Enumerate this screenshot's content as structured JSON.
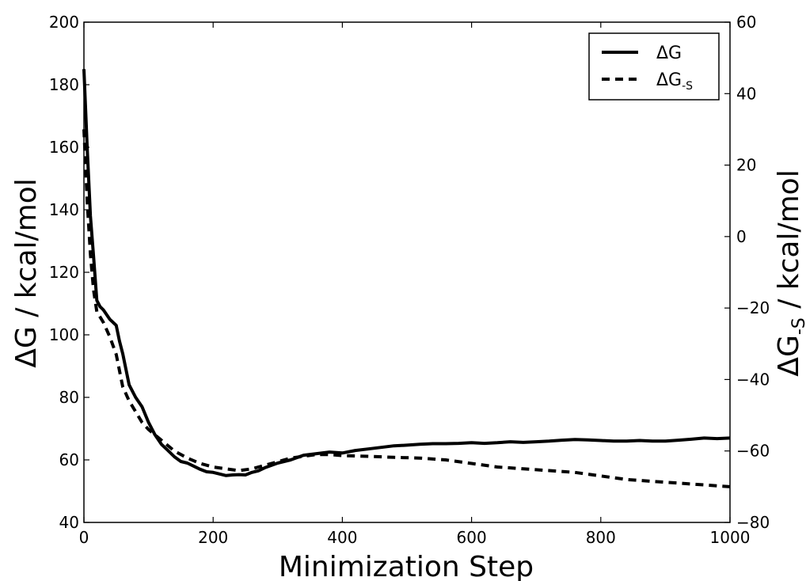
{
  "chart_data": {
    "type": "line",
    "xlabel": "Minimization Step",
    "ylabel_left": "ΔG / kcal/mol",
    "ylabel_right": {
      "base": "ΔG",
      "sub": "-S",
      "rest": " / kcal/mol"
    },
    "xlim": [
      0,
      1000
    ],
    "ylim_left": [
      40,
      200
    ],
    "ylim_right": [
      -80,
      60
    ],
    "xticks": [
      "0",
      "200",
      "400",
      "600",
      "800",
      "1000"
    ],
    "yticks_left": [
      "40",
      "60",
      "80",
      "100",
      "120",
      "140",
      "160",
      "180",
      "200"
    ],
    "yticks_right": [
      "−80",
      "−60",
      "−40",
      "−20",
      "0",
      "20",
      "40",
      "60"
    ],
    "grid": false,
    "legend_position": "top-right",
    "series": [
      {
        "name": "ΔG",
        "axis": "left",
        "style": "solid",
        "color": "#000000",
        "x": [
          0,
          5,
          10,
          15,
          20,
          25,
          30,
          40,
          50,
          55,
          60,
          70,
          80,
          90,
          100,
          110,
          120,
          130,
          140,
          150,
          160,
          170,
          180,
          190,
          200,
          210,
          220,
          230,
          240,
          250,
          260,
          270,
          280,
          300,
          320,
          340,
          360,
          380,
          400,
          420,
          440,
          460,
          480,
          500,
          520,
          540,
          560,
          580,
          600,
          620,
          640,
          660,
          680,
          700,
          720,
          740,
          760,
          780,
          800,
          820,
          840,
          860,
          880,
          900,
          920,
          940,
          960,
          980,
          1000
        ],
        "values": [
          185,
          160,
          138,
          125,
          111,
          109,
          108,
          105,
          103,
          98,
          94,
          84,
          80,
          77,
          72,
          68,
          65,
          63,
          61,
          59.5,
          59,
          58,
          57,
          56.2,
          56,
          55.5,
          55,
          55.2,
          55.3,
          55.2,
          56,
          56.5,
          57.5,
          59,
          60,
          61.5,
          62,
          62.5,
          62.2,
          63,
          63.5,
          64,
          64.5,
          64.7,
          65,
          65.2,
          65.2,
          65.3,
          65.5,
          65.3,
          65.5,
          65.8,
          65.6,
          65.8,
          66,
          66.3,
          66.5,
          66.4,
          66.2,
          66,
          66,
          66.2,
          66,
          66,
          66.3,
          66.6,
          67,
          66.8,
          67
        ]
      },
      {
        "name": "ΔG",
        "name_sub": "-S",
        "axis": "right",
        "style": "dashed",
        "color": "#000000",
        "x": [
          0,
          5,
          10,
          15,
          20,
          30,
          40,
          50,
          60,
          70,
          80,
          90,
          100,
          120,
          140,
          160,
          180,
          200,
          220,
          240,
          260,
          280,
          300,
          320,
          340,
          360,
          380,
          400,
          440,
          480,
          520,
          560,
          600,
          640,
          680,
          720,
          760,
          800,
          840,
          880,
          920,
          960,
          1000
        ],
        "values": [
          30,
          10,
          -5,
          -15,
          -21,
          -24,
          -28,
          -33,
          -42,
          -46,
          -49,
          -52,
          -54,
          -57,
          -60,
          -62,
          -63.5,
          -64.5,
          -65,
          -65.5,
          -65,
          -64,
          -63,
          -62,
          -61.5,
          -61,
          -61,
          -61.3,
          -61.5,
          -61.8,
          -62,
          -62.5,
          -63.5,
          -64.5,
          -65,
          -65.5,
          -66,
          -67,
          -68,
          -68.5,
          -69,
          -69.5,
          -70
        ]
      }
    ]
  }
}
